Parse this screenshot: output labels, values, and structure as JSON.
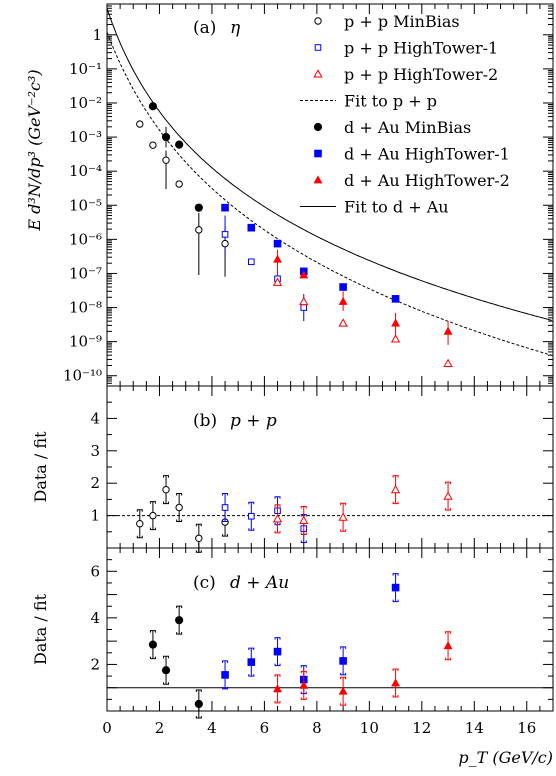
{
  "chart_data": [
    {
      "type": "scatter",
      "panel_label": "(a)",
      "title": "η",
      "ylabel": "E d³N/dp³  (GeV⁻²c³)",
      "xlabel": "",
      "yscale": "log",
      "xlim": [
        0,
        17
      ],
      "ylim": [
        5e-11,
        8
      ],
      "y_tick_labels": [
        "1",
        "10⁻¹",
        "10⁻²",
        "10⁻³",
        "10⁻⁴",
        "10⁻⁵",
        "10⁻⁶",
        "10⁻⁷",
        "10⁻⁸",
        "10⁻⁹",
        "10⁻¹⁰"
      ],
      "legend": [
        "p + p MinBias",
        "p + p HighTower-1",
        "p + p HighTower-2",
        "Fit to p + p",
        "d + Au MinBias",
        "d + Au HighTower-1",
        "d + Au HighTower-2",
        "Fit to d + Au"
      ],
      "legend_position": "top-right",
      "series": [
        {
          "name": "p + p MinBias",
          "marker": "open-circle",
          "color": "#000000",
          "x": [
            1.25,
            1.75,
            2.25,
            2.75,
            3.5,
            4.5
          ],
          "y": [
            0.0024,
            0.00058,
            0.00021,
            4.2e-05,
            1.9e-06,
            7.5e-07
          ]
        },
        {
          "name": "p + p HighTower-1",
          "marker": "open-square",
          "color": "#0000ff",
          "x": [
            4.5,
            5.5,
            6.5,
            7.5
          ],
          "y": [
            1.4e-06,
            2.2e-07,
            7e-08,
            1e-08
          ]
        },
        {
          "name": "p + p HighTower-2",
          "marker": "open-triangle",
          "color": "#ff0000",
          "x": [
            6.5,
            7.5,
            9,
            11,
            13
          ],
          "y": [
            5.5e-08,
            1.5e-08,
            3.5e-09,
            1.2e-09,
            2.3e-10
          ]
        },
        {
          "name": "d + Au MinBias",
          "marker": "filled-circle",
          "color": "#000000",
          "x": [
            1.75,
            2.25,
            2.75,
            3.5
          ],
          "y": [
            0.008,
            0.001,
            0.0006,
            8.5e-06
          ]
        },
        {
          "name": "d + Au HighTower-1",
          "marker": "filled-square",
          "color": "#0000ff",
          "x": [
            4.5,
            5.5,
            6.5,
            7.5,
            9,
            11
          ],
          "y": [
            8.5e-06,
            2.2e-06,
            7.5e-07,
            1.15e-07,
            4e-08,
            1.8e-08
          ]
        },
        {
          "name": "d + Au HighTower-2",
          "marker": "filled-triangle",
          "color": "#ff0000",
          "x": [
            6.5,
            7.5,
            9,
            11,
            13
          ],
          "y": [
            2.6e-07,
            9e-08,
            1.5e-08,
            3.5e-09,
            2e-09
          ]
        }
      ],
      "fits": [
        {
          "name": "Fit to p + p",
          "style": "dashed",
          "A": 1.2,
          "p0": 2.1,
          "n": 9.9
        },
        {
          "name": "Fit to d + Au",
          "style": "solid",
          "A": 6.0,
          "p0": 1.6,
          "n": 8.6
        }
      ]
    },
    {
      "type": "scatter",
      "panel_label": "(b)",
      "title": "p + p",
      "ylabel": "Data / fit",
      "xlim": [
        0,
        17
      ],
      "ylim": [
        0,
        5
      ],
      "y_ticks": [
        1,
        2,
        3,
        4
      ],
      "reference_line": {
        "y": 1,
        "style": "dashed"
      },
      "series": [
        {
          "name": "p + p MinBias",
          "marker": "open-circle",
          "color": "#000000",
          "x": [
            1.25,
            1.75,
            2.25,
            2.75,
            3.5,
            4.5
          ],
          "y": [
            0.75,
            1.0,
            1.8,
            1.25,
            0.3,
            0.8
          ]
        },
        {
          "name": "p + p HighTower-1",
          "marker": "open-square",
          "color": "#0000ff",
          "x": [
            4.5,
            5.5,
            6.5,
            7.5
          ],
          "y": [
            1.25,
            0.98,
            1.15,
            0.6
          ]
        },
        {
          "name": "p + p HighTower-2",
          "marker": "open-triangle",
          "color": "#ff0000",
          "x": [
            6.5,
            7.5,
            9,
            11,
            13
          ],
          "y": [
            0.9,
            0.85,
            0.95,
            1.8,
            1.6
          ]
        }
      ]
    },
    {
      "type": "scatter",
      "panel_label": "(c)",
      "title": "d + Au",
      "ylabel": "Data / fit",
      "xlabel": "p_T (GeV/c)",
      "xlim": [
        0,
        17
      ],
      "ylim": [
        0,
        7
      ],
      "y_ticks": [
        2,
        4,
        6
      ],
      "x_ticks": [
        0,
        2,
        4,
        6,
        8,
        10,
        12,
        14,
        16
      ],
      "reference_line": {
        "y": 1,
        "style": "solid"
      },
      "series": [
        {
          "name": "d + Au MinBias",
          "marker": "filled-circle",
          "color": "#000000",
          "x": [
            1.75,
            2.25,
            2.75,
            3.5
          ],
          "y": [
            2.85,
            1.75,
            3.9,
            0.3
          ]
        },
        {
          "name": "d + Au HighTower-1",
          "marker": "filled-square",
          "color": "#0000ff",
          "x": [
            4.5,
            5.5,
            6.5,
            7.5,
            9,
            11
          ],
          "y": [
            1.55,
            2.1,
            2.55,
            1.35,
            2.15,
            5.3
          ]
        },
        {
          "name": "d + Au HighTower-2",
          "marker": "filled-triangle",
          "color": "#ff0000",
          "x": [
            6.5,
            7.5,
            9,
            11,
            13
          ],
          "y": [
            0.95,
            1.1,
            0.85,
            1.2,
            2.8
          ]
        }
      ]
    }
  ]
}
